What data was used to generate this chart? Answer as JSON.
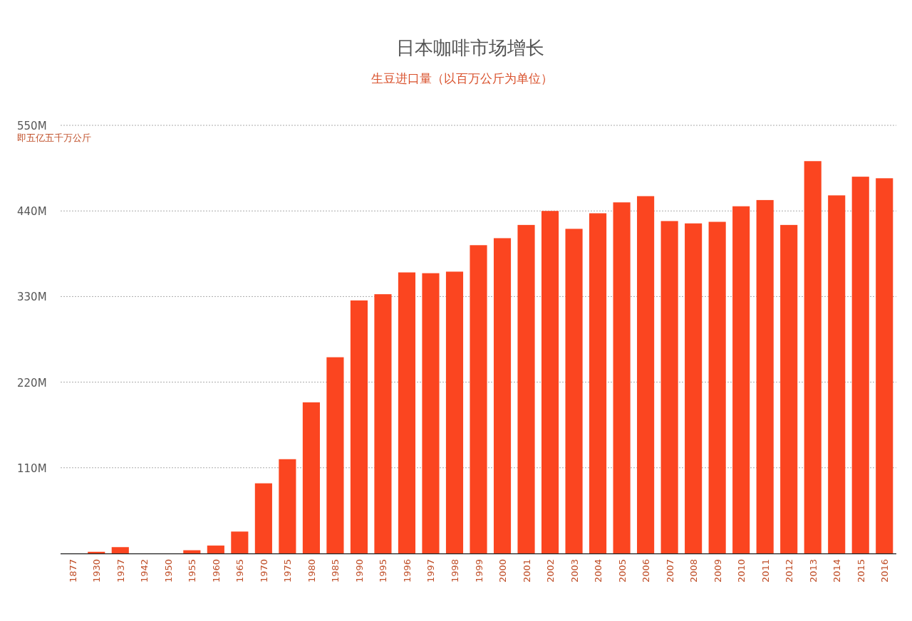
{
  "chart_data": {
    "type": "bar",
    "title": "日本咖啡市场增长",
    "subtitle": "生豆进口量（以百万公斤为单位）",
    "annotations": [
      "即五亿五千万公斤"
    ],
    "categories": [
      "1877",
      "1930",
      "1937",
      "1942",
      "1950",
      "1955",
      "1960",
      "1965",
      "1970",
      "1975",
      "1980",
      "1985",
      "1990",
      "1995",
      "1996",
      "1997",
      "1998",
      "1999",
      "2000",
      "2001",
      "2002",
      "2003",
      "2004",
      "2005",
      "2006",
      "2007",
      "2008",
      "2009",
      "2010",
      "2011",
      "2012",
      "2013",
      "2014",
      "2015",
      "2016"
    ],
    "values": [
      0,
      2,
      8,
      0,
      0,
      4,
      10,
      28,
      90,
      121,
      194,
      252,
      325,
      333,
      361,
      360,
      362,
      396,
      405,
      422,
      440,
      417,
      437,
      451,
      459,
      427,
      424,
      426,
      446,
      454,
      422,
      504,
      460,
      484,
      482
    ],
    "color": "#fb4520",
    "ylim": [
      0,
      550
    ],
    "yticks": [
      {
        "value": 110,
        "label": "110M"
      },
      {
        "value": 220,
        "label": "220M"
      },
      {
        "value": 330,
        "label": "330M"
      },
      {
        "value": 440,
        "label": "440M"
      },
      {
        "value": 550,
        "label": "550M"
      }
    ],
    "grid": "y"
  }
}
